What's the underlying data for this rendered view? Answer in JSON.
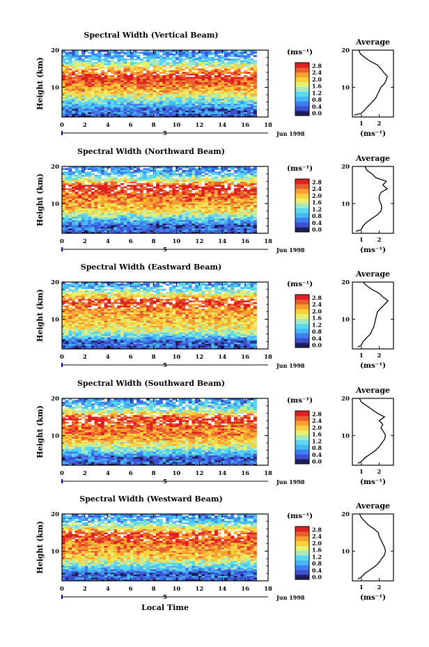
{
  "figure": {
    "xlabel_bottom": "Local Time",
    "date_label": "Jun 1998",
    "date_day": "5",
    "colorbar_unit": "(ms⁻¹)",
    "colorbar_ticks": [
      "2.8",
      "2.4",
      "2.0",
      "1.6",
      "1.2",
      "0.8",
      "0.4",
      "0.0"
    ],
    "colorbar_range": [
      0.0,
      2.8
    ],
    "palette_bottom_to_top": [
      "#1e1e5a",
      "#3c50d0",
      "#3e7eee",
      "#46b8f4",
      "#5ad8f0",
      "#a8e8c0",
      "#e8f070",
      "#f8d040",
      "#f8a030",
      "#e86030",
      "#e02020"
    ],
    "avg_title": "Average",
    "avg_xlabel": "(ms⁻¹)",
    "height_label": "Height (km)"
  },
  "chart_data": [
    {
      "type": "heatmap",
      "title": "Spectral Width (Vertical Beam)",
      "xlabel": "",
      "ylabel": "Height (km)",
      "x_ticks": [
        "0",
        "2",
        "4",
        "6",
        "8",
        "10",
        "12",
        "14",
        "16",
        "18"
      ],
      "y_ticks": [
        "10",
        "20"
      ],
      "xlim": [
        0,
        18
      ],
      "ylim": [
        2,
        20
      ],
      "value_range": [
        0.0,
        2.8
      ],
      "data_end_hour": 17,
      "profile_by_height": [
        [
          2,
          0.3
        ],
        [
          3,
          0.6
        ],
        [
          4,
          0.5
        ],
        [
          5,
          0.9
        ],
        [
          6,
          1.1
        ],
        [
          7,
          1.4
        ],
        [
          8,
          1.7
        ],
        [
          9,
          2.0
        ],
        [
          10,
          2.2
        ],
        [
          11,
          2.4
        ],
        [
          12,
          2.5
        ],
        [
          13,
          2.6
        ],
        [
          14,
          2.3
        ],
        [
          15,
          2.0
        ],
        [
          16,
          1.6
        ],
        [
          17,
          1.2
        ],
        [
          18,
          0.9
        ],
        [
          19,
          0.7
        ],
        [
          20,
          0.6
        ]
      ],
      "average_profile": {
        "xlim": [
          0.5,
          2.8
        ],
        "x_ticks": [
          "1",
          "2"
        ],
        "y_ticks": [
          "10",
          "20"
        ],
        "points": [
          [
            0.6,
            2.5
          ],
          [
            1.0,
            3.0
          ],
          [
            1.2,
            4.0
          ],
          [
            1.4,
            5.0
          ],
          [
            1.6,
            6.0
          ],
          [
            1.8,
            7.0
          ],
          [
            1.9,
            8.0
          ],
          [
            2.0,
            9.0
          ],
          [
            2.1,
            10.0
          ],
          [
            2.3,
            11.0
          ],
          [
            2.4,
            12.0
          ],
          [
            2.45,
            13.0
          ],
          [
            2.25,
            14.0
          ],
          [
            2.1,
            15.0
          ],
          [
            1.9,
            16.0
          ],
          [
            1.5,
            17.0
          ],
          [
            1.2,
            18.0
          ],
          [
            0.95,
            19.0
          ],
          [
            0.85,
            20.0
          ]
        ]
      }
    },
    {
      "type": "heatmap",
      "title": "Spectral Width (Northward Beam)",
      "xlabel": "",
      "ylabel": "Height (km)",
      "x_ticks": [
        "0",
        "2",
        "4",
        "6",
        "8",
        "10",
        "12",
        "14",
        "16",
        "18"
      ],
      "y_ticks": [
        "10",
        "20"
      ],
      "xlim": [
        0,
        18
      ],
      "ylim": [
        2,
        20
      ],
      "value_range": [
        0.0,
        2.8
      ],
      "data_end_hour": 17,
      "profile_by_height": [
        [
          2,
          0.3
        ],
        [
          3,
          0.6
        ],
        [
          4,
          0.4
        ],
        [
          5,
          0.8
        ],
        [
          6,
          1.1
        ],
        [
          7,
          1.5
        ],
        [
          8,
          1.8
        ],
        [
          9,
          2.0
        ],
        [
          10,
          2.1
        ],
        [
          11,
          2.2
        ],
        [
          12,
          2.3
        ],
        [
          13,
          2.5
        ],
        [
          14,
          2.7
        ],
        [
          15,
          2.6
        ],
        [
          16,
          1.8
        ],
        [
          17,
          1.4
        ],
        [
          18,
          1.0
        ],
        [
          19,
          0.8
        ],
        [
          20,
          0.6
        ]
      ],
      "average_profile": {
        "xlim": [
          0.5,
          2.8
        ],
        "x_ticks": [
          "1",
          "2"
        ],
        "y_ticks": [
          "10",
          "20"
        ],
        "points": [
          [
            0.7,
            2.5
          ],
          [
            1.0,
            3.0
          ],
          [
            1.1,
            4.0
          ],
          [
            1.3,
            5.0
          ],
          [
            1.6,
            6.0
          ],
          [
            1.9,
            7.0
          ],
          [
            2.1,
            8.0
          ],
          [
            2.15,
            9.0
          ],
          [
            2.1,
            10.0
          ],
          [
            2.0,
            11.0
          ],
          [
            2.0,
            12.0
          ],
          [
            2.1,
            13.0
          ],
          [
            2.45,
            14.0
          ],
          [
            2.2,
            15.0
          ],
          [
            2.4,
            16.0
          ],
          [
            1.8,
            17.0
          ],
          [
            1.6,
            18.0
          ],
          [
            1.3,
            19.0
          ],
          [
            1.2,
            20.0
          ]
        ]
      }
    },
    {
      "type": "heatmap",
      "title": "Spectral Width (Eastward Beam)",
      "xlabel": "",
      "ylabel": "Height (km)",
      "x_ticks": [
        "0",
        "2",
        "4",
        "6",
        "8",
        "10",
        "12",
        "14",
        "16",
        "18"
      ],
      "y_ticks": [
        "10",
        "20"
      ],
      "xlim": [
        0,
        18
      ],
      "ylim": [
        2,
        20
      ],
      "value_range": [
        0.0,
        2.8
      ],
      "data_end_hour": 17,
      "profile_by_height": [
        [
          2,
          0.3
        ],
        [
          3,
          0.6
        ],
        [
          4,
          0.4
        ],
        [
          5,
          0.9
        ],
        [
          6,
          1.3
        ],
        [
          7,
          1.6
        ],
        [
          8,
          1.8
        ],
        [
          9,
          1.9
        ],
        [
          10,
          2.0
        ],
        [
          11,
          2.0
        ],
        [
          12,
          2.1
        ],
        [
          13,
          2.3
        ],
        [
          14,
          2.5
        ],
        [
          15,
          2.6
        ],
        [
          16,
          1.9
        ],
        [
          17,
          1.6
        ],
        [
          18,
          1.2
        ],
        [
          19,
          0.9
        ],
        [
          20,
          0.7
        ]
      ],
      "average_profile": {
        "xlim": [
          0.5,
          2.8
        ],
        "x_ticks": [
          "1",
          "2"
        ],
        "y_ticks": [
          "10",
          "20"
        ],
        "points": [
          [
            0.8,
            2.5
          ],
          [
            1.0,
            3.0
          ],
          [
            1.1,
            4.0
          ],
          [
            1.3,
            5.0
          ],
          [
            1.5,
            6.0
          ],
          [
            1.6,
            7.0
          ],
          [
            1.7,
            8.0
          ],
          [
            1.75,
            9.0
          ],
          [
            1.8,
            10.0
          ],
          [
            1.85,
            11.0
          ],
          [
            1.9,
            12.0
          ],
          [
            2.1,
            13.0
          ],
          [
            2.3,
            14.0
          ],
          [
            2.5,
            15.0
          ],
          [
            2.2,
            16.0
          ],
          [
            2.0,
            17.0
          ],
          [
            1.6,
            18.0
          ],
          [
            1.3,
            19.0
          ],
          [
            1.1,
            20.0
          ]
        ]
      }
    },
    {
      "type": "heatmap",
      "title": "Spectral Width (Southward Beam)",
      "xlabel": "",
      "ylabel": "Height (km)",
      "x_ticks": [
        "0",
        "2",
        "4",
        "6",
        "8",
        "10",
        "12",
        "14",
        "16",
        "18"
      ],
      "y_ticks": [
        "10",
        "20"
      ],
      "xlim": [
        0,
        18
      ],
      "ylim": [
        2,
        20
      ],
      "value_range": [
        0.0,
        2.8
      ],
      "data_end_hour": 17,
      "profile_by_height": [
        [
          2,
          0.3
        ],
        [
          3,
          0.6
        ],
        [
          4,
          0.4
        ],
        [
          5,
          0.9
        ],
        [
          6,
          1.2
        ],
        [
          7,
          1.5
        ],
        [
          8,
          1.8
        ],
        [
          9,
          2.0
        ],
        [
          10,
          2.2
        ],
        [
          11,
          2.3
        ],
        [
          12,
          2.3
        ],
        [
          13,
          2.4
        ],
        [
          14,
          2.6
        ],
        [
          15,
          2.5
        ],
        [
          16,
          1.8
        ],
        [
          17,
          1.4
        ],
        [
          18,
          1.0
        ],
        [
          19,
          0.8
        ],
        [
          20,
          0.6
        ]
      ],
      "average_profile": {
        "xlim": [
          0.5,
          2.8
        ],
        "x_ticks": [
          "1",
          "2"
        ],
        "y_ticks": [
          "10",
          "20"
        ],
        "points": [
          [
            0.8,
            2.5
          ],
          [
            1.0,
            3.0
          ],
          [
            1.2,
            4.0
          ],
          [
            1.5,
            5.0
          ],
          [
            1.8,
            6.0
          ],
          [
            2.0,
            7.0
          ],
          [
            2.15,
            8.0
          ],
          [
            2.3,
            9.0
          ],
          [
            2.35,
            10.0
          ],
          [
            2.25,
            11.0
          ],
          [
            2.1,
            12.0
          ],
          [
            2.2,
            13.0
          ],
          [
            2.0,
            14.0
          ],
          [
            2.3,
            15.0
          ],
          [
            1.9,
            16.0
          ],
          [
            1.6,
            17.0
          ],
          [
            1.3,
            18.0
          ],
          [
            1.0,
            19.0
          ],
          [
            0.9,
            20.0
          ]
        ]
      }
    },
    {
      "type": "heatmap",
      "title": "Spectral Width (Westward Beam)",
      "xlabel": "Local Time",
      "ylabel": "Height (km)",
      "x_ticks": [
        "0",
        "2",
        "4",
        "6",
        "8",
        "10",
        "12",
        "14",
        "16",
        "18"
      ],
      "y_ticks": [
        "10",
        "20"
      ],
      "xlim": [
        0,
        18
      ],
      "ylim": [
        2,
        20
      ],
      "value_range": [
        0.0,
        2.8
      ],
      "data_end_hour": 17,
      "profile_by_height": [
        [
          2,
          0.3
        ],
        [
          3,
          0.6
        ],
        [
          4,
          0.4
        ],
        [
          5,
          0.9
        ],
        [
          6,
          1.2
        ],
        [
          7,
          1.5
        ],
        [
          8,
          1.8
        ],
        [
          9,
          2.0
        ],
        [
          10,
          2.1
        ],
        [
          11,
          2.2
        ],
        [
          12,
          2.3
        ],
        [
          13,
          2.4
        ],
        [
          14,
          2.5
        ],
        [
          15,
          2.4
        ],
        [
          16,
          1.8
        ],
        [
          17,
          1.4
        ],
        [
          18,
          1.0
        ],
        [
          19,
          0.8
        ],
        [
          20,
          0.6
        ]
      ],
      "average_profile": {
        "xlim": [
          0.5,
          2.8
        ],
        "x_ticks": [
          "1",
          "2"
        ],
        "y_ticks": [
          "10",
          "20"
        ],
        "points": [
          [
            0.8,
            2.5
          ],
          [
            1.0,
            3.0
          ],
          [
            1.2,
            4.0
          ],
          [
            1.5,
            5.0
          ],
          [
            1.8,
            6.0
          ],
          [
            2.0,
            7.0
          ],
          [
            2.15,
            8.0
          ],
          [
            2.3,
            9.0
          ],
          [
            2.35,
            10.0
          ],
          [
            2.3,
            11.0
          ],
          [
            2.2,
            12.0
          ],
          [
            2.1,
            13.0
          ],
          [
            2.0,
            14.0
          ],
          [
            1.95,
            15.0
          ],
          [
            1.7,
            16.0
          ],
          [
            1.4,
            17.0
          ],
          [
            1.2,
            18.0
          ],
          [
            1.0,
            19.0
          ],
          [
            0.9,
            20.0
          ]
        ]
      }
    }
  ]
}
